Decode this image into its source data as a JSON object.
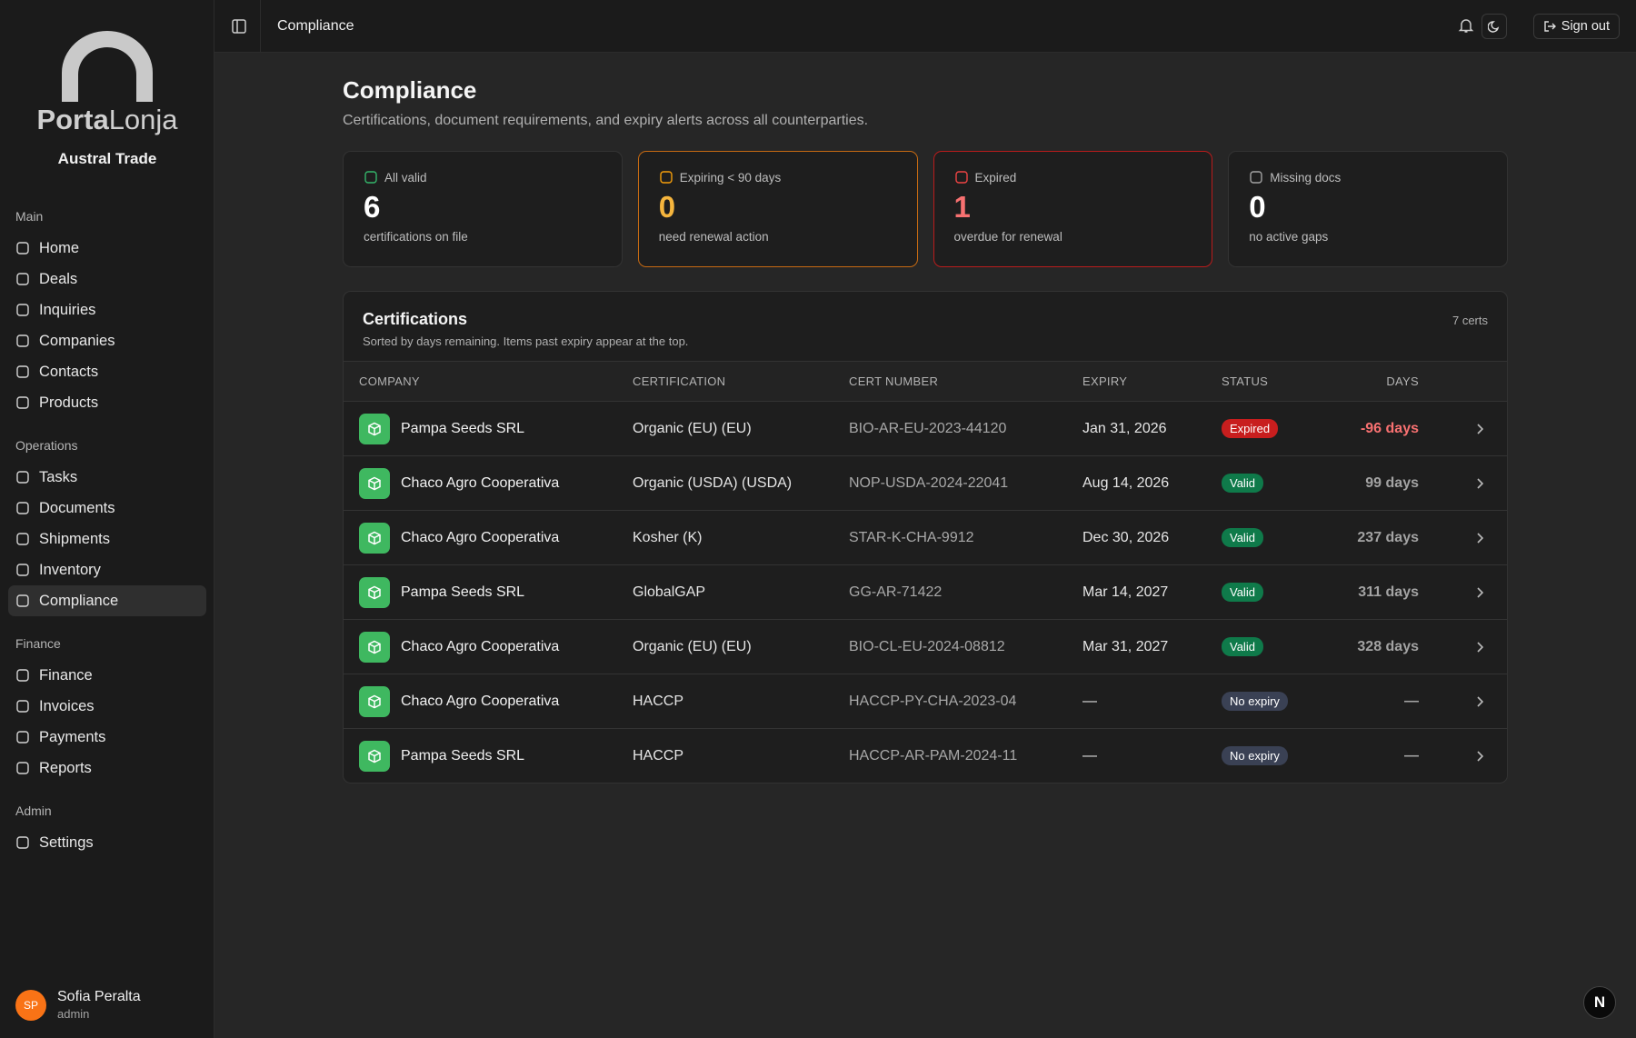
{
  "sidebar": {
    "brand": {
      "bold": "Porta",
      "light": "Lonja"
    },
    "org": "Austral Trade",
    "groups": [
      {
        "label": "Main",
        "items": [
          "Home",
          "Deals",
          "Inquiries",
          "Companies",
          "Contacts",
          "Products"
        ]
      },
      {
        "label": "Operations",
        "items": [
          "Tasks",
          "Documents",
          "Shipments",
          "Inventory",
          "Compliance"
        ],
        "active": 4
      },
      {
        "label": "Finance",
        "items": [
          "Finance",
          "Invoices",
          "Payments",
          "Reports"
        ]
      },
      {
        "label": "Admin",
        "items": [
          "Settings"
        ]
      }
    ],
    "user": {
      "initials": "SP",
      "name": "Sofia Peralta",
      "role": "admin"
    }
  },
  "topbar": {
    "title": "Compliance",
    "sign_out": "Sign out"
  },
  "header": {
    "title": "Compliance",
    "subtitle": "Certifications, document requirements, and expiry alerts across all counterparties."
  },
  "stats": [
    {
      "label": "All valid",
      "value": 6,
      "caption": "certifications on file",
      "color": "#ffffff",
      "border": "#333333",
      "icon_color": "#34b56a"
    },
    {
      "label": "Expiring < 90 days",
      "value": 0,
      "caption": "need renewal action",
      "color": "#f5b53d",
      "border": "#c66a12",
      "icon_color": "#f59e0b"
    },
    {
      "label": "Expired",
      "value": 1,
      "caption": "overdue for renewal",
      "color": "#f87171",
      "border": "#b91c1c",
      "icon_color": "#ef4444"
    },
    {
      "label": "Missing docs",
      "value": 0,
      "caption": "no active gaps",
      "color": "#ffffff",
      "border": "#333333",
      "icon_color": "#a3a3a3"
    }
  ],
  "table": {
    "title": "Certifications",
    "subtitle": "Sorted by days remaining. Items past expiry appear at the top.",
    "count": "7 certs",
    "columns": [
      "COMPANY",
      "CERTIFICATION",
      "CERT NUMBER",
      "EXPIRY",
      "STATUS",
      "DAYS"
    ],
    "rows": [
      {
        "company": "Pampa Seeds SRL",
        "certification": "Organic (EU) (EU)",
        "cert_number": "BIO-AR-EU-2023-44120",
        "expiry": "Jan 31, 2026",
        "status": "Expired",
        "status_color": "#c81e1e",
        "days": "-96 days",
        "days_color": "#f87171"
      },
      {
        "company": "Chaco Agro Cooperativa",
        "certification": "Organic (USDA) (USDA)",
        "cert_number": "NOP-USDA-2024-22041",
        "expiry": "Aug 14, 2026",
        "status": "Valid",
        "status_color": "#0f7a4a",
        "days": "99 days",
        "days_color": "#a3a3a3"
      },
      {
        "company": "Chaco Agro Cooperativa",
        "certification": "Kosher (K)",
        "cert_number": "STAR-K-CHA-9912",
        "expiry": "Dec 30, 2026",
        "status": "Valid",
        "status_color": "#0f7a4a",
        "days": "237 days",
        "days_color": "#a3a3a3"
      },
      {
        "company": "Pampa Seeds SRL",
        "certification": "GlobalGAP",
        "cert_number": "GG-AR-71422",
        "expiry": "Mar 14, 2027",
        "status": "Valid",
        "status_color": "#0f7a4a",
        "days": "311 days",
        "days_color": "#a3a3a3"
      },
      {
        "company": "Chaco Agro Cooperativa",
        "certification": "Organic (EU) (EU)",
        "cert_number": "BIO-CL-EU-2024-08812",
        "expiry": "Mar 31, 2027",
        "status": "Valid",
        "status_color": "#0f7a4a",
        "days": "328 days",
        "days_color": "#a3a3a3"
      },
      {
        "company": "Chaco Agro Cooperativa",
        "certification": "HACCP",
        "cert_number": "HACCP-PY-CHA-2023-04",
        "expiry": "—",
        "status": "No expiry",
        "status_color": "#3a4154",
        "days": "—",
        "days_color": "#a3a3a3"
      },
      {
        "company": "Pampa Seeds SRL",
        "certification": "HACCP",
        "cert_number": "HACCP-AR-PAM-2024-11",
        "expiry": "—",
        "status": "No expiry",
        "status_color": "#3a4154",
        "days": "—",
        "days_color": "#a3a3a3"
      }
    ]
  },
  "dev_badge": "N"
}
